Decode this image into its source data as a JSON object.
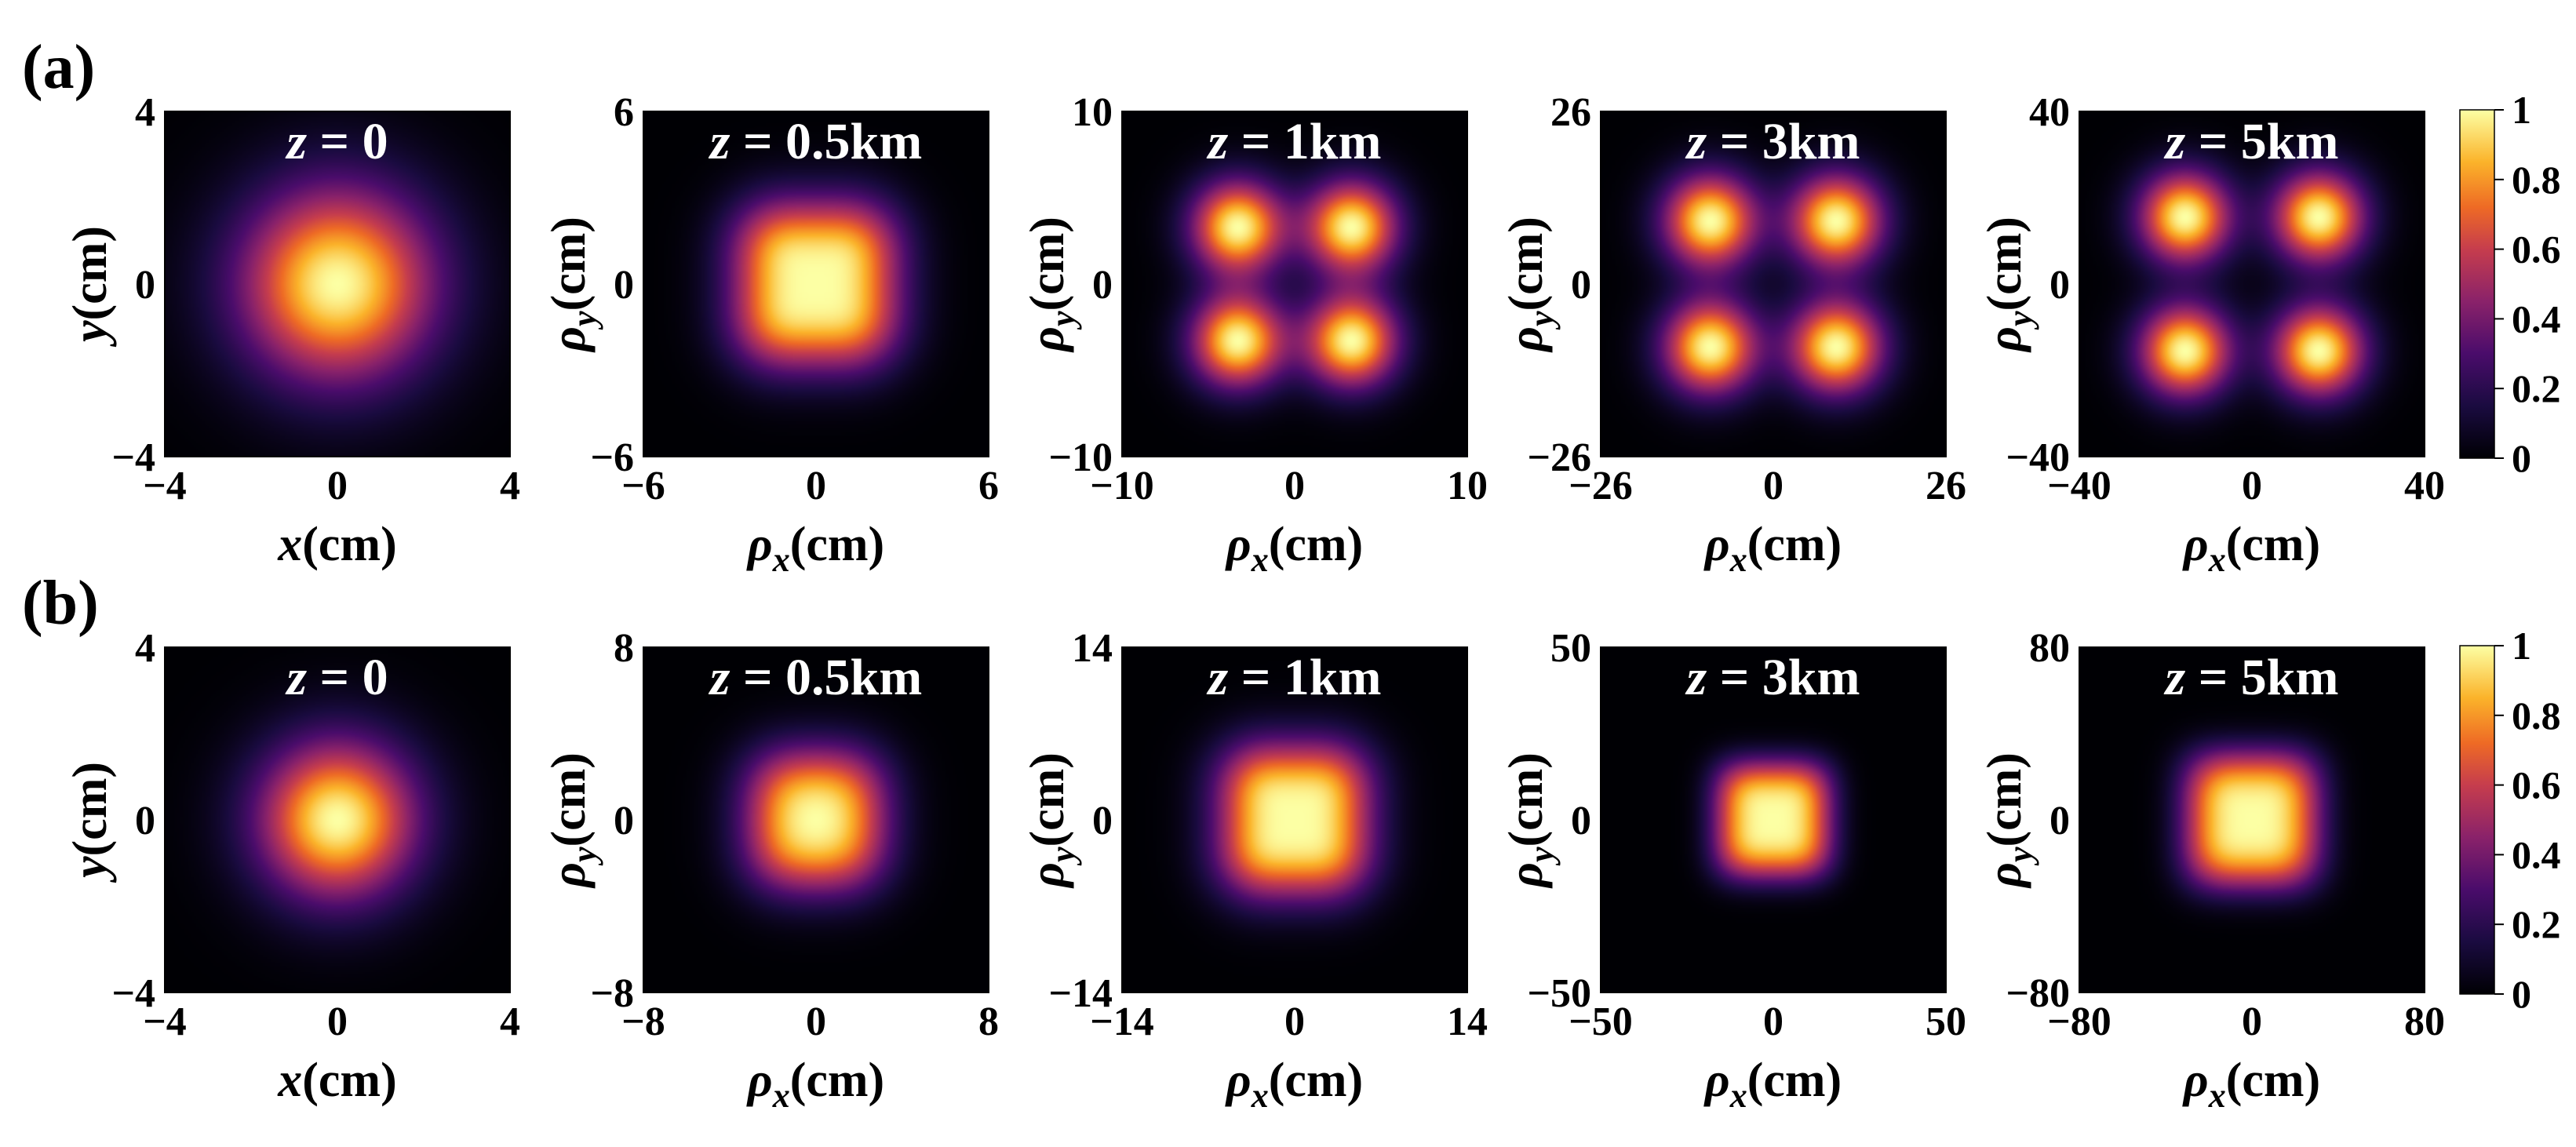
{
  "panel_labels": [
    "(a)",
    "(b)"
  ],
  "colorbar": {
    "ticks": [
      "1",
      "0.8",
      "0.6",
      "0.4",
      "0.2",
      "0"
    ],
    "range": [
      0,
      1
    ],
    "colormap": "inferno"
  },
  "chart_data": [
    {
      "type": "heatmap",
      "row": "(a)",
      "plots": [
        {
          "title_var": "z",
          "title_eq": " = 0",
          "xlabel_var": "x",
          "ylabel_var": "y",
          "label_unit": "(cm)",
          "sub": "",
          "lim": 4,
          "xticks": [
            "−4",
            "0",
            "4"
          ],
          "yticks": [
            "4",
            "0",
            "−4"
          ],
          "pattern": "gaussian",
          "spot_sigma": 1.6
        },
        {
          "title_var": "z",
          "title_eq": " = 0.5km",
          "xlabel_var": "ρ",
          "ylabel_var": "ρ",
          "label_unit": "(cm)",
          "sub": "xy",
          "lim": 6,
          "xticks": [
            "−6",
            "0",
            "6"
          ],
          "yticks": [
            "6",
            "0",
            "−6"
          ],
          "pattern": "four-lobes-merged",
          "lobe_offset": 1.3,
          "spot_sigma": 1.3
        },
        {
          "title_var": "z",
          "title_eq": " = 1km",
          "xlabel_var": "ρ",
          "ylabel_var": "ρ",
          "label_unit": "(cm)",
          "sub": "xy",
          "lim": 10,
          "xticks": [
            "−10",
            "0",
            "10"
          ],
          "yticks": [
            "10",
            "0",
            "−10"
          ],
          "pattern": "four-lobes",
          "lobe_offset": 3.3,
          "spot_sigma": 1.9
        },
        {
          "title_var": "z",
          "title_eq": " = 3km",
          "xlabel_var": "ρ",
          "ylabel_var": "ρ",
          "label_unit": "(cm)",
          "sub": "xy",
          "lim": 26,
          "xticks": [
            "−26",
            "0",
            "26"
          ],
          "yticks": [
            "26",
            "0",
            "−26"
          ],
          "pattern": "four-lobes",
          "lobe_offset": 9.5,
          "spot_sigma": 5.0
        },
        {
          "title_var": "z",
          "title_eq": " = 5km",
          "xlabel_var": "ρ",
          "ylabel_var": "ρ",
          "label_unit": "(cm)",
          "sub": "xy",
          "lim": 40,
          "xticks": [
            "−40",
            "0",
            "40"
          ],
          "yticks": [
            "40",
            "0",
            "−40"
          ],
          "pattern": "four-lobes",
          "lobe_offset": 15.5,
          "spot_sigma": 7.5
        }
      ]
    },
    {
      "type": "heatmap",
      "row": "(b)",
      "plots": [
        {
          "title_var": "z",
          "title_eq": " = 0",
          "xlabel_var": "x",
          "ylabel_var": "y",
          "label_unit": "(cm)",
          "sub": "",
          "lim": 4,
          "xticks": [
            "−4",
            "0",
            "4"
          ],
          "yticks": [
            "4",
            "0",
            "−4"
          ],
          "pattern": "gaussian",
          "spot_sigma": 1.3
        },
        {
          "title_var": "z",
          "title_eq": " = 0.5km",
          "xlabel_var": "ρ",
          "ylabel_var": "ρ",
          "label_unit": "(cm)",
          "sub": "xy",
          "lim": 8,
          "xticks": [
            "−8",
            "0",
            "8"
          ],
          "yticks": [
            "8",
            "0",
            "−8"
          ],
          "pattern": "four-lobes-merged",
          "lobe_offset": 1.4,
          "spot_sigma": 1.6
        },
        {
          "title_var": "z",
          "title_eq": " = 1km",
          "xlabel_var": "ρ",
          "ylabel_var": "ρ",
          "label_unit": "(cm)",
          "sub": "xy",
          "lim": 14,
          "xticks": [
            "−14",
            "0",
            "14"
          ],
          "yticks": [
            "14",
            "0",
            "−14"
          ],
          "pattern": "four-lobes-merged",
          "lobe_offset": 2.8,
          "spot_sigma": 2.8
        },
        {
          "title_var": "z",
          "title_eq": " = 3km",
          "xlabel_var": "ρ",
          "ylabel_var": "ρ",
          "label_unit": "(cm)",
          "sub": "xy",
          "lim": 50,
          "xticks": [
            "−50",
            "0",
            "50"
          ],
          "yticks": [
            "50",
            "0",
            "−50"
          ],
          "pattern": "flat-top",
          "spot_sigma": 14
        },
        {
          "title_var": "z",
          "title_eq": " = 5km",
          "xlabel_var": "ρ",
          "ylabel_var": "ρ",
          "label_unit": "(cm)",
          "sub": "xy",
          "lim": 80,
          "xticks": [
            "−80",
            "0",
            "80"
          ],
          "yticks": [
            "80",
            "0",
            "−80"
          ],
          "pattern": "flat-top",
          "spot_sigma": 26
        }
      ]
    }
  ]
}
